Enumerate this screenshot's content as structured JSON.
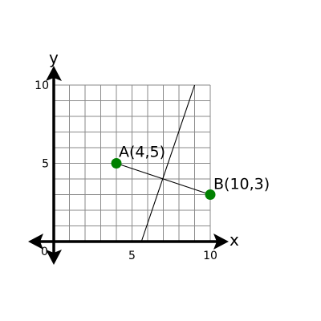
{
  "chart_data": {
    "type": "scatter",
    "xlim": [
      0,
      10
    ],
    "ylim": [
      0,
      10
    ],
    "grid": true,
    "grid_step": 1,
    "axis_names": {
      "x": "x",
      "y": "y"
    },
    "tick_labels": {
      "origin": "0",
      "x": [
        {
          "value": 5,
          "text": "5"
        },
        {
          "value": 10,
          "text": "10"
        }
      ],
      "y": [
        {
          "value": 5,
          "text": "5"
        },
        {
          "value": 10,
          "text": "10"
        }
      ]
    },
    "points": [
      {
        "label": "A(4,5)",
        "x": 4,
        "y": 5,
        "color": "#008000",
        "label_side": "above"
      },
      {
        "label": "B(10,3)",
        "x": 10,
        "y": 3,
        "color": "#008000",
        "label_side": "above-right"
      }
    ],
    "segments": [
      {
        "from": [
          4,
          5
        ],
        "to": [
          10,
          3
        ]
      },
      {
        "from": [
          5.6,
          0
        ],
        "to": [
          9,
          10
        ]
      }
    ]
  }
}
